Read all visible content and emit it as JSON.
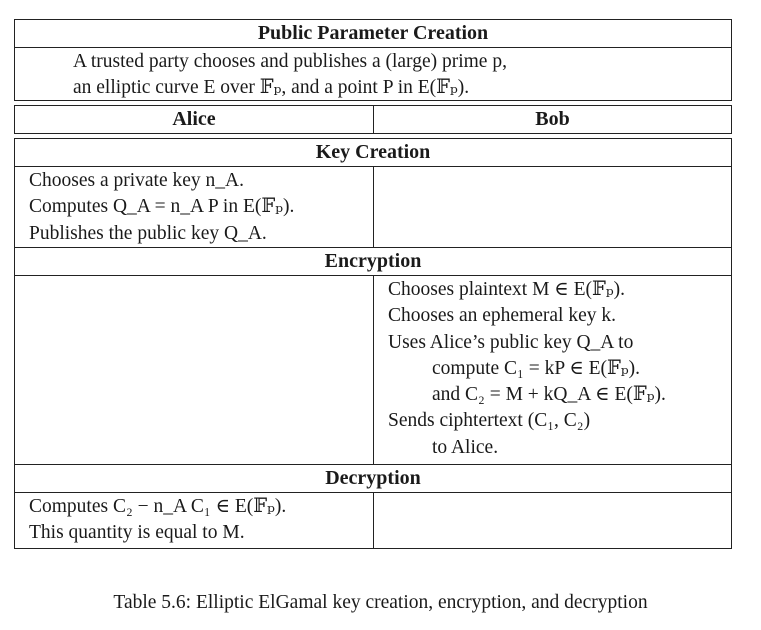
{
  "public_parameters": {
    "title": "Public Parameter Creation",
    "lines": [
      "A trusted party chooses and publishes a (large) prime p,",
      "an elliptic curve E over 𝔽ₚ, and a point P in E(𝔽ₚ)."
    ]
  },
  "columns": {
    "left": "Alice",
    "right": "Bob"
  },
  "sections": {
    "key_creation": {
      "title": "Key Creation",
      "alice": [
        "Chooses a private key n_A.",
        "Computes Q_A = n_A P in E(𝔽ₚ).",
        "Publishes the public key Q_A."
      ]
    },
    "encryption": {
      "title": "Encryption",
      "bob": [
        "Chooses plaintext M ∈ E(𝔽ₚ).",
        "Chooses an ephemeral key k.",
        "Uses Alice’s public key Q_A to",
        "compute C₁ = kP ∈ E(𝔽ₚ).",
        "and C₂ = M + kQ_A ∈ E(𝔽ₚ).",
        "Sends ciphtertext (C₁, C₂)",
        "to Alice."
      ]
    },
    "decryption": {
      "title": "Decryption",
      "alice": [
        "Computes C₂ − n_A C₁ ∈ E(𝔽ₚ).",
        "This quantity is equal to M."
      ]
    }
  },
  "caption": "Table 5.6: Elliptic ElGamal key creation, encryption, and decryption"
}
